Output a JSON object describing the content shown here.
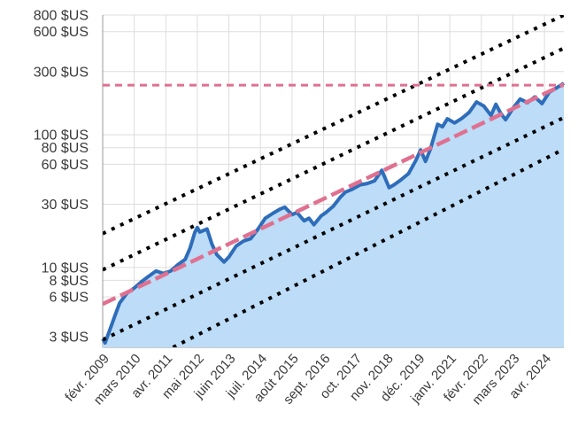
{
  "chart_data": {
    "type": "area",
    "yscale": "log",
    "ylim": [
      2.5,
      800
    ],
    "grid": true,
    "currency_suffix": " $US",
    "y_ticks": [
      {
        "value": 800,
        "label": "800 $US"
      },
      {
        "value": 600,
        "label": "600 $US"
      },
      {
        "value": 300,
        "label": "300 $US"
      },
      {
        "value": 100,
        "label": "100 $US"
      },
      {
        "value": 80,
        "label": "80 $US"
      },
      {
        "value": 60,
        "label": "60 $US"
      },
      {
        "value": 30,
        "label": "30 $US"
      },
      {
        "value": 10,
        "label": "10 $US"
      },
      {
        "value": 8,
        "label": "8 $US"
      },
      {
        "value": 6,
        "label": "6 $US"
      },
      {
        "value": 3,
        "label": "3 $US"
      }
    ],
    "x_ticks": [
      {
        "date": "2009-02",
        "label": "févr. 2009"
      },
      {
        "date": "2010-03",
        "label": "mars 2010"
      },
      {
        "date": "2011-04",
        "label": "avr. 2011"
      },
      {
        "date": "2012-05",
        "label": "mai 2012"
      },
      {
        "date": "2013-06",
        "label": "juin 2013"
      },
      {
        "date": "2014-07",
        "label": "juil. 2014"
      },
      {
        "date": "2015-08",
        "label": "août 2015"
      },
      {
        "date": "2016-09",
        "label": "sept. 2016"
      },
      {
        "date": "2017-10",
        "label": "oct. 2017"
      },
      {
        "date": "2018-11",
        "label": "nov. 2018"
      },
      {
        "date": "2019-12",
        "label": "déc. 2019"
      },
      {
        "date": "2021-01",
        "label": "janv. 2021"
      },
      {
        "date": "2022-02",
        "label": "févr. 2022"
      },
      {
        "date": "2023-03",
        "label": "mars 2023"
      },
      {
        "date": "2024-04",
        "label": "avr. 2024"
      }
    ],
    "x_range": [
      "2009-02",
      "2024-12"
    ],
    "price_series": {
      "color": "#2e6dba",
      "fill": "#bcdcf7",
      "points": [
        [
          "2009-02",
          2.9
        ],
        [
          "2009-03",
          2.7
        ],
        [
          "2009-05",
          3.4
        ],
        [
          "2009-07",
          4.3
        ],
        [
          "2009-09",
          5.4
        ],
        [
          "2009-12",
          6.4
        ],
        [
          "2010-03",
          7.0
        ],
        [
          "2010-06",
          7.8
        ],
        [
          "2010-09",
          8.6
        ],
        [
          "2010-12",
          9.4
        ],
        [
          "2011-03",
          9.0
        ],
        [
          "2011-06",
          9.4
        ],
        [
          "2011-09",
          10.5
        ],
        [
          "2011-12",
          11.5
        ],
        [
          "2012-02",
          14.0
        ],
        [
          "2012-04",
          18.5
        ],
        [
          "2012-05",
          20.0
        ],
        [
          "2012-06",
          18.5
        ],
        [
          "2012-09",
          19.5
        ],
        [
          "2012-11",
          15.0
        ],
        [
          "2013-01",
          12.5
        ],
        [
          "2013-04",
          11.0
        ],
        [
          "2013-06",
          12.0
        ],
        [
          "2013-09",
          14.5
        ],
        [
          "2013-12",
          15.8
        ],
        [
          "2014-03",
          16.5
        ],
        [
          "2014-06",
          19.5
        ],
        [
          "2014-09",
          23.5
        ],
        [
          "2014-12",
          25.5
        ],
        [
          "2015-03",
          27.5
        ],
        [
          "2015-05",
          28.5
        ],
        [
          "2015-08",
          25.0
        ],
        [
          "2015-10",
          26.0
        ],
        [
          "2016-01",
          22.5
        ],
        [
          "2016-03",
          23.5
        ],
        [
          "2016-05",
          21.0
        ],
        [
          "2016-08",
          24.5
        ],
        [
          "2016-10",
          26.0
        ],
        [
          "2017-01",
          29.0
        ],
        [
          "2017-04",
          34.0
        ],
        [
          "2017-06",
          37.0
        ],
        [
          "2017-09",
          39.0
        ],
        [
          "2017-12",
          42.0
        ],
        [
          "2018-03",
          43.0
        ],
        [
          "2018-06",
          45.0
        ],
        [
          "2018-09",
          54.0
        ],
        [
          "2018-12",
          40.0
        ],
        [
          "2019-02",
          42.0
        ],
        [
          "2019-05",
          46.0
        ],
        [
          "2019-08",
          51.0
        ],
        [
          "2019-11",
          64.0
        ],
        [
          "2020-01",
          77.0
        ],
        [
          "2020-03",
          63.0
        ],
        [
          "2020-05",
          78.0
        ],
        [
          "2020-08",
          120.0
        ],
        [
          "2020-10",
          115.0
        ],
        [
          "2020-12",
          132.0
        ],
        [
          "2021-03",
          123.0
        ],
        [
          "2021-06",
          133.0
        ],
        [
          "2021-09",
          148.0
        ],
        [
          "2021-12",
          177.0
        ],
        [
          "2022-03",
          165.0
        ],
        [
          "2022-06",
          140.0
        ],
        [
          "2022-08",
          170.0
        ],
        [
          "2022-10",
          145.0
        ],
        [
          "2022-12",
          130.0
        ],
        [
          "2023-03",
          158.0
        ],
        [
          "2023-06",
          186.0
        ],
        [
          "2023-09",
          175.0
        ],
        [
          "2023-12",
          193.0
        ],
        [
          "2024-03",
          172.0
        ],
        [
          "2024-06",
          210.0
        ],
        [
          "2024-09",
          226.0
        ],
        [
          "2024-12",
          245.0
        ]
      ]
    },
    "trend_line": {
      "color": "#e07090",
      "style": "dashed",
      "start": [
        "2009-02",
        5.3
      ],
      "end": [
        "2024-12",
        240
      ]
    },
    "horizontal_line": {
      "color": "#e07090",
      "style": "dashed",
      "value": 237
    },
    "channel_lines": [
      {
        "color": "#000000",
        "style": "dotted",
        "start": [
          "2009-02",
          18
        ],
        "end": [
          "2024-12",
          800
        ]
      },
      {
        "color": "#000000",
        "style": "dotted",
        "start": [
          "2009-02",
          9.6
        ],
        "end": [
          "2024-12",
          450
        ]
      },
      {
        "color": "#000000",
        "style": "dotted",
        "start": [
          "2009-02",
          2.85
        ],
        "end": [
          "2024-12",
          135
        ]
      },
      {
        "color": "#000000",
        "style": "dotted",
        "start": [
          "2011-07",
          2.5
        ],
        "end": [
          "2024-12",
          78
        ]
      }
    ]
  }
}
